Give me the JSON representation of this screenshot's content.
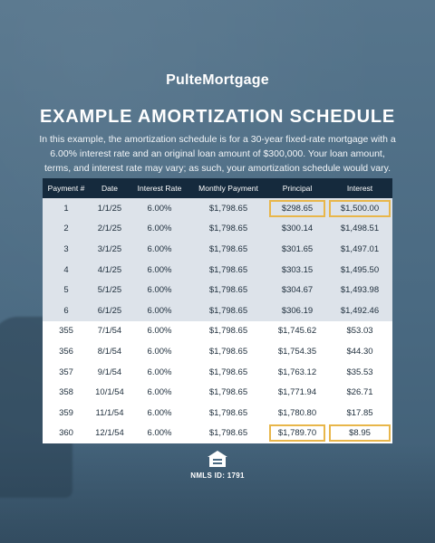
{
  "brand": {
    "logo": "PulteMortgage"
  },
  "heading": {
    "title": "EXAMPLE AMORTIZATION SCHEDULE",
    "description": "In this example, the amortization schedule is for a 30-year fixed-rate mortgage with a 6.00% interest rate and an original loan amount of $300,000. Your loan amount, terms, and interest rate may vary; as such, your amortization schedule would vary."
  },
  "table": {
    "headers": [
      "Payment #",
      "Date",
      "Interest Rate",
      "Monthly Payment",
      "Principal",
      "Interest"
    ],
    "rows": [
      [
        "1",
        "1/1/25",
        "6.00%",
        "$1,798.65",
        "$298.65",
        "$1,500.00"
      ],
      [
        "2",
        "2/1/25",
        "6.00%",
        "$1,798.65",
        "$300.14",
        "$1,498.51"
      ],
      [
        "3",
        "3/1/25",
        "6.00%",
        "$1,798.65",
        "$301.65",
        "$1,497.01"
      ],
      [
        "4",
        "4/1/25",
        "6.00%",
        "$1,798.65",
        "$303.15",
        "$1,495.50"
      ],
      [
        "5",
        "5/1/25",
        "6.00%",
        "$1,798.65",
        "$304.67",
        "$1,493.98"
      ],
      [
        "6",
        "6/1/25",
        "6.00%",
        "$1,798.65",
        "$306.19",
        "$1,492.46"
      ],
      [
        "355",
        "7/1/54",
        "6.00%",
        "$1,798.65",
        "$1,745.62",
        "$53.03"
      ],
      [
        "356",
        "8/1/54",
        "6.00%",
        "$1,798.65",
        "$1,754.35",
        "$44.30"
      ],
      [
        "357",
        "9/1/54",
        "6.00%",
        "$1,798.65",
        "$1,763.12",
        "$35.53"
      ],
      [
        "358",
        "10/1/54",
        "6.00%",
        "$1,798.65",
        "$1,771.94",
        "$26.71"
      ],
      [
        "359",
        "11/1/54",
        "6.00%",
        "$1,798.65",
        "$1,780.80",
        "$17.85"
      ],
      [
        "360",
        "12/1/54",
        "6.00%",
        "$1,798.65",
        "$1,789.70",
        "$8.95"
      ]
    ]
  },
  "footer": {
    "icon": "equal-housing-icon",
    "nmls": "NMLS ID: 1791"
  },
  "colors": {
    "background": "#4a6a82",
    "header": "#152a3d",
    "highlight": "#e8b64a",
    "early_rows": "#dde3ea",
    "late_rows": "#ffffff"
  }
}
